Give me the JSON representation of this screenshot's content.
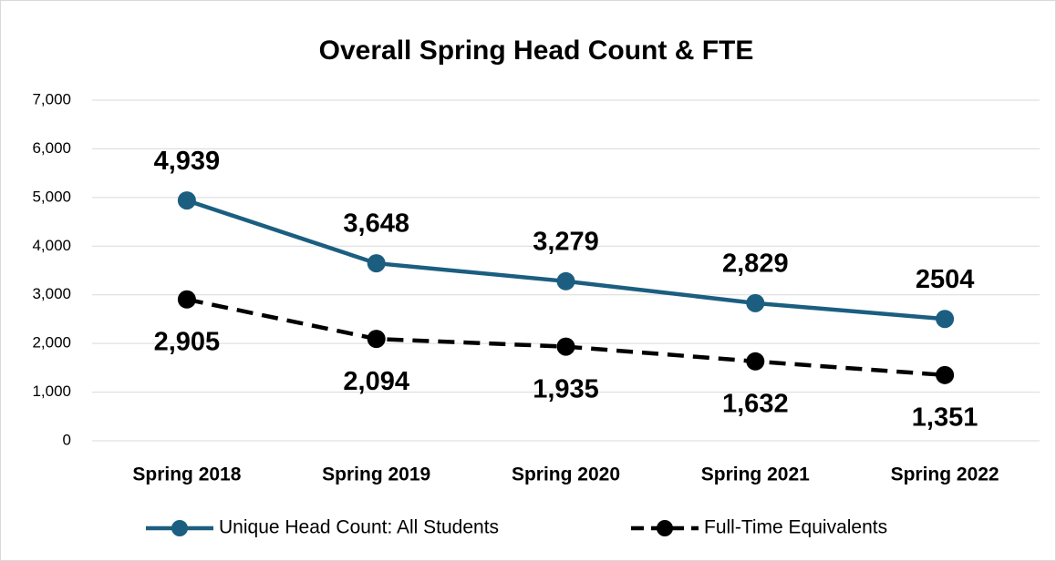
{
  "chart_data": {
    "type": "line",
    "title": "Overall Spring Head Count & FTE",
    "categories": [
      "Spring 2018",
      "Spring 2019",
      "Spring 2020",
      "Spring 2021",
      "Spring 2022"
    ],
    "series": [
      {
        "name": "Unique Head Count: All Students",
        "color": "#1b5e80",
        "dashed": false,
        "values": [
          4939,
          3648,
          3279,
          2829,
          2504
        ],
        "value_labels": [
          "4,939",
          "3,648",
          "3,279",
          "2,829",
          "2504"
        ],
        "label_position": "above"
      },
      {
        "name": "Full-Time Equivalents",
        "color": "#000000",
        "dashed": true,
        "values": [
          2905,
          2094,
          1935,
          1632,
          1351
        ],
        "value_labels": [
          "2,905",
          "2,094",
          "1,935",
          "1,632",
          "1,351"
        ],
        "label_position": "below"
      }
    ],
    "ylim": [
      0,
      7000
    ],
    "yticks": [
      0,
      {
        "value": 1000,
        "label": "1,000"
      },
      {
        "value": 2000,
        "label": "2,000"
      },
      {
        "value": 3000,
        "label": "3,000"
      },
      {
        "value": 4000,
        "label": "4,000"
      },
      {
        "value": 5000,
        "label": "5,000"
      },
      {
        "value": 6000,
        "label": "6,000"
      },
      {
        "value": 7000,
        "label": "7,000"
      }
    ],
    "grid": true,
    "legend": "bottom"
  }
}
